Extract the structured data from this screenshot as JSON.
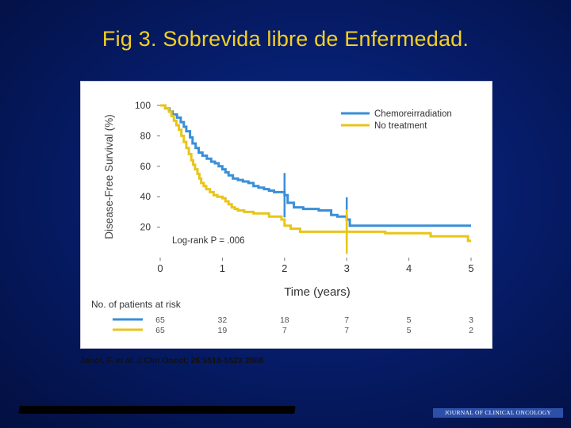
{
  "slide": {
    "title": "Fig 3. Sobrevida libre de Enfermedad.",
    "citation": "Janot, F. et al. J Clin Oncol; 26:5518-5523 2008",
    "journal_logo": "JOURNAL OF CLINICAL ONCOLOGY"
  },
  "colors": {
    "background": "#061d6b",
    "title": "#f5d020",
    "chemoradiation": "#3a8fd8",
    "no_treatment": "#e8c51a"
  },
  "chart_data": {
    "type": "line",
    "xlabel": "Time (years)",
    "ylabel": "Disease-Free Survival (%)",
    "xlim": [
      0,
      5
    ],
    "ylim": [
      0,
      100
    ],
    "x_ticks": [
      "0",
      "1",
      "2",
      "3",
      "4",
      "5"
    ],
    "y_ticks": [
      "20",
      "40",
      "60",
      "80",
      "100"
    ],
    "legend_position": "top-right",
    "annotation": "Log-rank P = .006",
    "series": [
      {
        "name": "Chemoreirradiation",
        "color": "#3a8fd8",
        "points": [
          [
            0,
            100
          ],
          [
            0.08,
            98
          ],
          [
            0.15,
            96
          ],
          [
            0.2,
            94
          ],
          [
            0.27,
            92
          ],
          [
            0.33,
            89
          ],
          [
            0.38,
            86
          ],
          [
            0.42,
            83
          ],
          [
            0.48,
            79
          ],
          [
            0.52,
            75
          ],
          [
            0.57,
            72
          ],
          [
            0.62,
            69
          ],
          [
            0.68,
            67
          ],
          [
            0.75,
            65
          ],
          [
            0.82,
            63
          ],
          [
            0.88,
            62
          ],
          [
            0.94,
            60
          ],
          [
            1.0,
            58
          ],
          [
            1.05,
            56
          ],
          [
            1.1,
            54
          ],
          [
            1.17,
            52
          ],
          [
            1.25,
            51
          ],
          [
            1.33,
            50
          ],
          [
            1.42,
            49
          ],
          [
            1.5,
            47
          ],
          [
            1.58,
            46
          ],
          [
            1.67,
            45
          ],
          [
            1.75,
            44
          ],
          [
            1.83,
            43
          ],
          [
            2.0,
            41
          ],
          [
            2.05,
            36
          ],
          [
            2.15,
            33
          ],
          [
            2.3,
            32
          ],
          [
            2.55,
            31
          ],
          [
            2.75,
            28
          ],
          [
            2.85,
            27
          ],
          [
            3.0,
            25
          ],
          [
            3.05,
            21
          ],
          [
            5.0,
            21
          ]
        ],
        "censor_marks": [
          [
            2.0,
            41
          ],
          [
            3.0,
            25
          ]
        ]
      },
      {
        "name": "No treatment",
        "color": "#e8c51a",
        "points": [
          [
            0,
            100
          ],
          [
            0.08,
            98
          ],
          [
            0.14,
            96
          ],
          [
            0.18,
            93
          ],
          [
            0.22,
            90
          ],
          [
            0.26,
            87
          ],
          [
            0.3,
            84
          ],
          [
            0.34,
            80
          ],
          [
            0.38,
            76
          ],
          [
            0.42,
            72
          ],
          [
            0.46,
            68
          ],
          [
            0.5,
            64
          ],
          [
            0.53,
            61
          ],
          [
            0.56,
            58
          ],
          [
            0.6,
            55
          ],
          [
            0.63,
            52
          ],
          [
            0.66,
            49
          ],
          [
            0.7,
            47
          ],
          [
            0.74,
            45
          ],
          [
            0.8,
            43
          ],
          [
            0.86,
            41
          ],
          [
            0.92,
            40
          ],
          [
            1.0,
            39
          ],
          [
            1.05,
            37
          ],
          [
            1.1,
            35
          ],
          [
            1.15,
            33
          ],
          [
            1.2,
            32
          ],
          [
            1.25,
            31
          ],
          [
            1.35,
            30
          ],
          [
            1.5,
            29
          ],
          [
            1.75,
            27
          ],
          [
            1.95,
            25
          ],
          [
            2.0,
            21
          ],
          [
            2.1,
            19
          ],
          [
            2.25,
            17
          ],
          [
            3.0,
            17
          ],
          [
            3.6,
            17
          ],
          [
            3.62,
            16
          ],
          [
            4.0,
            16
          ],
          [
            4.33,
            16
          ],
          [
            4.35,
            14
          ],
          [
            4.92,
            14
          ],
          [
            4.95,
            11
          ],
          [
            5.0,
            11
          ]
        ],
        "censor_marks": [
          [
            3.0,
            17
          ]
        ]
      }
    ],
    "at_risk": {
      "title": "No. of patients at risk",
      "rows": [
        {
          "series": "Chemoreirradiation",
          "values": [
            "65",
            "32",
            "18",
            "7",
            "5",
            "3"
          ]
        },
        {
          "series": "No treatment",
          "values": [
            "65",
            "19",
            "7",
            "7",
            "5",
            "2"
          ]
        }
      ]
    }
  }
}
